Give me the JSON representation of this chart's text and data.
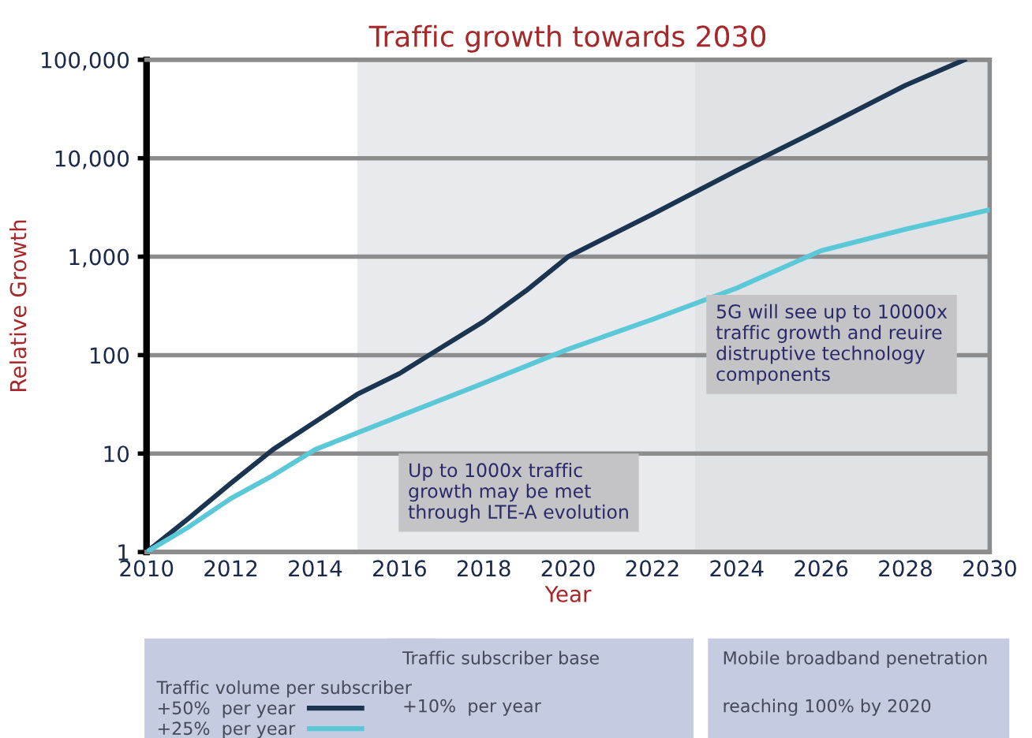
{
  "chart_data": {
    "type": "line",
    "title": "Traffic growth towards 2030",
    "xlabel": "Year",
    "ylabel": "Relative Growth",
    "legend_title": "Traffic volume per subscriber",
    "series": [
      {
        "name": "+50%  per year",
        "color": "#1b3550",
        "x": [
          2010,
          2011,
          2012,
          2013,
          2014,
          2015,
          2016,
          2017,
          2018,
          2019,
          2020,
          2022,
          2024,
          2026,
          2028,
          2029.4
        ],
        "values": [
          1,
          2.2,
          5,
          11,
          21,
          40,
          65,
          120,
          220,
          450,
          1000,
          2700,
          7500,
          20000,
          55000,
          100000
        ]
      },
      {
        "name": "+25%  per year",
        "color": "#5bc8d8",
        "x": [
          2010,
          2011,
          2012,
          2013,
          2014,
          2016,
          2018,
          2020,
          2022,
          2024,
          2026,
          2028,
          2030
        ],
        "values": [
          1,
          1.8,
          3.5,
          6,
          11,
          24,
          52,
          115,
          230,
          480,
          1150,
          1900,
          3000
        ]
      }
    ],
    "xlim": [
      2010,
      2030
    ],
    "xticks": [
      2010,
      2012,
      2014,
      2016,
      2018,
      2020,
      2022,
      2024,
      2026,
      2028,
      2030
    ],
    "ylim": [
      1,
      100000
    ],
    "yticks": [
      1,
      {
        "value": 10,
        "label": "10"
      },
      {
        "value": 100,
        "label": "100"
      },
      {
        "value": 1000,
        "label": "1,000"
      },
      {
        "value": 10000,
        "label": "10,000"
      },
      {
        "value": 100000,
        "label": "100,000"
      }
    ],
    "log": "y",
    "grid": "y",
    "legend": "bottom",
    "marker": "none",
    "line_style": "solid",
    "bands": [
      {
        "axis": "x",
        "from": 2015,
        "to": 2023,
        "color": "#e9eaee"
      },
      {
        "axis": "x",
        "from": 2023,
        "to": 2030,
        "color": "#dfe3e6"
      }
    ],
    "annotations": [
      "Up to 1000x traffic\ngrowth may be met\nthrough LTE-A evolution",
      "5G will see up to 10000x\ntraffic growth and reuire\ndistruptive technology\ncomponents",
      "Traffic subscriber base",
      "+10%  per year",
      "Mobile broadband penetration",
      "reaching 100% by 2020"
    ]
  }
}
